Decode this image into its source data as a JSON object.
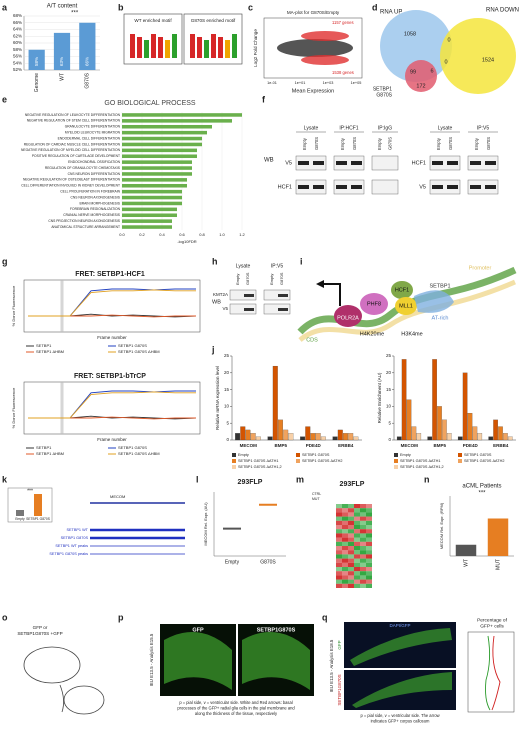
{
  "panel_labels": [
    "a",
    "b",
    "c",
    "d",
    "e",
    "f",
    "g",
    "h",
    "i",
    "j",
    "k",
    "l",
    "m",
    "n",
    "o",
    "p",
    "q"
  ],
  "chart_data": [
    {
      "type": "bar",
      "title": "A/T content",
      "categories": [
        "Genome",
        "WT",
        "G870S"
      ],
      "values": [
        58,
        63,
        66
      ],
      "value_labels": [
        "58%",
        "63%",
        "66%"
      ],
      "color": "#5b9bd5",
      "ylim": [
        52,
        68
      ],
      "yticks": [
        {
          "value": 52,
          "label": "52%"
        },
        {
          "value": 54,
          "label": "54%"
        },
        {
          "value": 56,
          "label": "56%"
        },
        {
          "value": 58,
          "label": "58%"
        },
        {
          "value": 60,
          "label": "60%"
        },
        {
          "value": 62,
          "label": "62%"
        },
        {
          "value": 64,
          "label": "64%"
        },
        {
          "value": 66,
          "label": "66%"
        },
        {
          "value": 68,
          "label": "68%"
        }
      ],
      "annotation": "***"
    },
    {
      "type": "barh",
      "title": "GO BIOLOGICAL PROCESS",
      "x_label": "-log10FDR",
      "color": "#6ab04c",
      "categories": [
        "NEGATIVE REGULATION OF LEUKOCYTE DIFFERENTIATION",
        "NEGATIVE REGULATION OF STEM CELL DIFFERENTIATION",
        "GRANULOCYTE DIFFERENTIATION",
        "MYELOID LEUKOCYTE MIGRATION",
        "ENDODERMAL CELL DIFFERENTIATION",
        "REGULATION OF CARDIAC MUSCLE CELL DIFFERENTIATION",
        "NEGATIVE REGULATION OF MYELOID CELL DIFFERENTIATION",
        "POSITIVE REGULATION OF CARTILAGE DEVELOPMENT",
        "ENDOCHONDRAL OSSIFICATION",
        "REGULATION OF GRANULOCYTE CHEMOTAXIS",
        "CNS NEURON DIFFERENTIATION",
        "NEGATIVE REGULATION OF OSTEOBLAST DIFFERENTIATION",
        "CELL DIFFERENTIATION INVOLVED IN KIDNEY DEVELOPMENT",
        "CELL PROLIFERATION IN FOREBRAIN",
        "CNS NEURON AXONOGENESIS",
        "BRAIN MORPHOGENESIS",
        "FOREBRAIN REGIONALIZATION",
        "CRANIAL NERVE MORPHOGENESIS",
        "CNS PROJECTION NEURON AXONOGENESIS",
        "ANATOMICAL STRUCTURE ARRANGEMENT"
      ],
      "values": [
        1.2,
        1.1,
        0.9,
        0.85,
        0.8,
        0.8,
        0.75,
        0.75,
        0.7,
        0.7,
        0.7,
        0.65,
        0.65,
        0.6,
        0.6,
        0.6,
        0.55,
        0.55,
        0.5,
        0.5
      ],
      "xlim": [
        0,
        1.3
      ],
      "xticks": [
        {
          "value": 0,
          "label": "0.0"
        },
        {
          "value": 0.2,
          "label": "0.2"
        },
        {
          "value": 0.4,
          "label": "0.4"
        },
        {
          "value": 0.6,
          "label": "0.6"
        },
        {
          "value": 0.8,
          "label": "0.8"
        },
        {
          "value": 1,
          "label": "1.0"
        },
        {
          "value": 1.2,
          "label": "1.2"
        }
      ]
    },
    {
      "type": "grouped",
      "y_label": "Relative mRNA expression level",
      "categories": [
        "MECOM",
        "BMP5",
        "PDE4D",
        "ERBB4"
      ],
      "ylim": [
        0,
        25
      ],
      "yticks": [
        0,
        5,
        10,
        15,
        20,
        25
      ],
      "series": [
        {
          "name": "Empty",
          "color": "#333333",
          "values": [
            2,
            1,
            1,
            1
          ]
        },
        {
          "name": "SETBP1 G870S",
          "color": "#d35400",
          "values": [
            4,
            22,
            4,
            3
          ]
        },
        {
          "name": "SETBP1 G870S ΔATH1",
          "color": "#e67e22",
          "values": [
            3,
            6,
            2,
            2
          ]
        },
        {
          "name": "SETBP1 G870S ΔATH2",
          "color": "#f0a35e",
          "values": [
            2,
            3,
            2,
            2
          ]
        },
        {
          "name": "SETBP1 G870S ΔATH1,2",
          "color": "#f7d0a8",
          "values": [
            1,
            2,
            1,
            1
          ]
        }
      ]
    },
    {
      "type": "grouped",
      "y_label": "Relative Enrichment (AU)",
      "categories": [
        "MECOM",
        "BMP5",
        "PDE4D",
        "ERBB4"
      ],
      "ylim": [
        0,
        25
      ],
      "yticks": [
        0,
        5,
        10,
        15,
        20,
        25
      ],
      "series": [
        {
          "name": "Empty",
          "color": "#333333",
          "values": [
            1,
            1,
            1,
            1
          ]
        },
        {
          "name": "SETBP1 G870S",
          "color": "#d35400",
          "values": [
            24,
            24,
            20,
            6
          ]
        },
        {
          "name": "SETBP1 G870S ΔATH1",
          "color": "#e67e22",
          "values": [
            12,
            10,
            8,
            4
          ]
        },
        {
          "name": "SETBP1 G870S ΔATH2",
          "color": "#f0a35e",
          "values": [
            4,
            6,
            4,
            2
          ]
        },
        {
          "name": "SETBP1 G870S ΔATH1,2",
          "color": "#f7d0a8",
          "values": [
            2,
            2,
            2,
            1
          ]
        }
      ]
    },
    {
      "type": "dot",
      "title": "293FLP",
      "y_label": "MECOM Rel. Expr. (AU)",
      "categories": [
        "Empty",
        "G870S"
      ],
      "values": [
        0.15,
        0.28
      ],
      "colors": [
        "#555555",
        "#e67e22"
      ],
      "ylim": [
        0,
        0.35
      ]
    },
    {
      "type": "bar",
      "title": "aCML Patients",
      "y_label": "MECOM Rel. Expr. (RPM)",
      "categories": [
        "WT",
        "MUT"
      ],
      "values": [
        30,
        100
      ],
      "colors": [
        "#555555",
        "#e67e22"
      ],
      "ylim": [
        0,
        160
      ],
      "annotation": "***"
    }
  ],
  "b": {
    "wt_title": "WT enriched motif",
    "g870s_title": "G870S enriched motif"
  },
  "c": {
    "title": "MA-plot for G870S/Empty",
    "up": "1157 genes",
    "down": "1538 genes",
    "x_label": "Mean Expression",
    "y_label": "Log2 Fold Change",
    "x_ticks": [
      "1e-01",
      "1e+01",
      "1e+03",
      "1e+05"
    ]
  },
  "d": {
    "up": "RNA UP",
    "down": "RNA DOWN",
    "setbp1": [
      "SETBP1",
      "G870S"
    ],
    "counts": [
      "1058",
      "1524",
      "0",
      "0",
      "99",
      "6",
      "172"
    ]
  },
  "f": {
    "wb": "WB",
    "lysate": "Lysate",
    "ip_hcf1": "IP:HCF1",
    "ip_igg": "IP:IgG",
    "ip_v5": "IP:V5",
    "lanes": [
      "Empty",
      "G870S"
    ],
    "rows_1": [
      "V5",
      "HCF1"
    ],
    "rows_2": [
      "HCF1",
      "V5"
    ]
  },
  "g": {
    "title_1": "FRET: SETBP1-HCF1",
    "title_2": "FRET: SETBP1-bTrCP",
    "y_label": "% Donor Fluorescence",
    "x_label": "Frame number",
    "legend": [
      "SETBP1",
      "SETBP1 ΔHBM",
      "SETBP1 G870S",
      "SETBP1 G870S ΔHBM"
    ]
  },
  "h": {
    "wb": "WB",
    "lysate": "Lysate",
    "ip_v5": "IP:V5",
    "lanes": [
      "Empty",
      "G870S"
    ],
    "rows": [
      "KMT2A",
      "V5"
    ]
  },
  "i": {
    "labels": [
      "Promoter",
      "CDS",
      "POLR2A",
      "PHF8",
      "HCF1",
      "MLL1",
      "SETBP1",
      "AT-rich",
      "H4K20me",
      "H3K4me"
    ]
  },
  "k": {
    "gene": "MECOM",
    "tracks": [
      "SETBP1 WT",
      "SETBP1 G870S",
      "SETBP1 WT peaks",
      "SETBP1 G870S peaks"
    ],
    "inset_categories": [
      "Empty",
      "SETBP1 G870S"
    ],
    "inset_sig": "***"
  },
  "m": {
    "title": "293FLP",
    "groups": [
      "CTRL",
      "MUT"
    ]
  },
  "o": {
    "label": [
      "GFP or",
      "SETBP1G870S +GFP"
    ]
  },
  "p": {
    "gfp": "GFP",
    "mut": "SETBP1G870S",
    "side": "IEU E13.5 - Analysis E15.5",
    "caption": [
      "p = pial side, v = ventricular side. White and Red arrows: basal",
      "processes of the GFP+ radial glia cells in the pial membrane and",
      "along the thickness of the tissue, respectively"
    ]
  },
  "q": {
    "stain": "DAPI/GFP",
    "gfp": "GFP",
    "mut": "SETBP1G870S",
    "side": "IEU E13.5 - Analysis E18.5",
    "chart_title": [
      "Percentage of",
      "GFP+ cells"
    ],
    "caption": [
      "p = pial side, v = ventricular side. The arrow",
      "indicates GFP+ corpus callosum"
    ]
  }
}
